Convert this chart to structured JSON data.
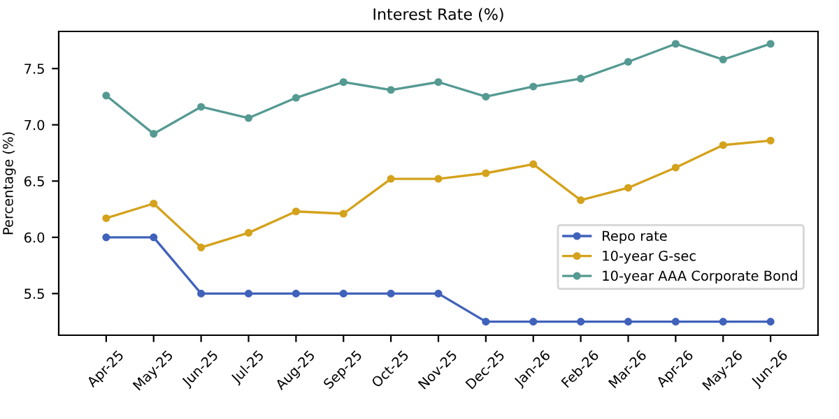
{
  "chart_data": {
    "type": "line",
    "title": "Interest Rate (%)",
    "ylabel": "Percentage (%)",
    "categories": [
      "Apr-25",
      "May-25",
      "Jun-25",
      "Jul-25",
      "Aug-25",
      "Sep-25",
      "Oct-25",
      "Nov-25",
      "Dec-25",
      "Jan-26",
      "Feb-26",
      "Mar-26",
      "Apr-26",
      "May-26",
      "Jun-26"
    ],
    "series": [
      {
        "name": "Repo rate",
        "color": "#4062bb",
        "values": [
          6.0,
          6.0,
          5.5,
          5.5,
          5.5,
          5.5,
          5.5,
          5.5,
          5.25,
          5.25,
          5.25,
          5.25,
          5.25,
          5.25,
          5.25
        ]
      },
      {
        "name": "10-year G-sec",
        "color": "#d4a21c",
        "values": [
          6.17,
          6.3,
          5.91,
          6.04,
          6.23,
          6.21,
          6.52,
          6.52,
          6.57,
          6.65,
          6.33,
          6.44,
          6.62,
          6.82,
          6.86
        ]
      },
      {
        "name": "10-year AAA Corporate Bond",
        "color": "#559a92",
        "values": [
          7.26,
          6.92,
          7.16,
          7.06,
          7.24,
          7.38,
          7.31,
          7.38,
          7.25,
          7.34,
          7.41,
          7.56,
          7.72,
          7.58,
          7.72
        ]
      }
    ],
    "ylim": [
      5.13,
      7.83
    ],
    "yticks": [
      {
        "value": 5.5,
        "label": "5.5"
      },
      {
        "value": 6.0,
        "label": "6.0"
      },
      {
        "value": 6.5,
        "label": "6.5"
      },
      {
        "value": 7.0,
        "label": "7.0"
      },
      {
        "value": 7.5,
        "label": "7.5"
      }
    ],
    "marker": "circle",
    "line_style": "solid",
    "legend": "bottom right",
    "grid": false
  }
}
